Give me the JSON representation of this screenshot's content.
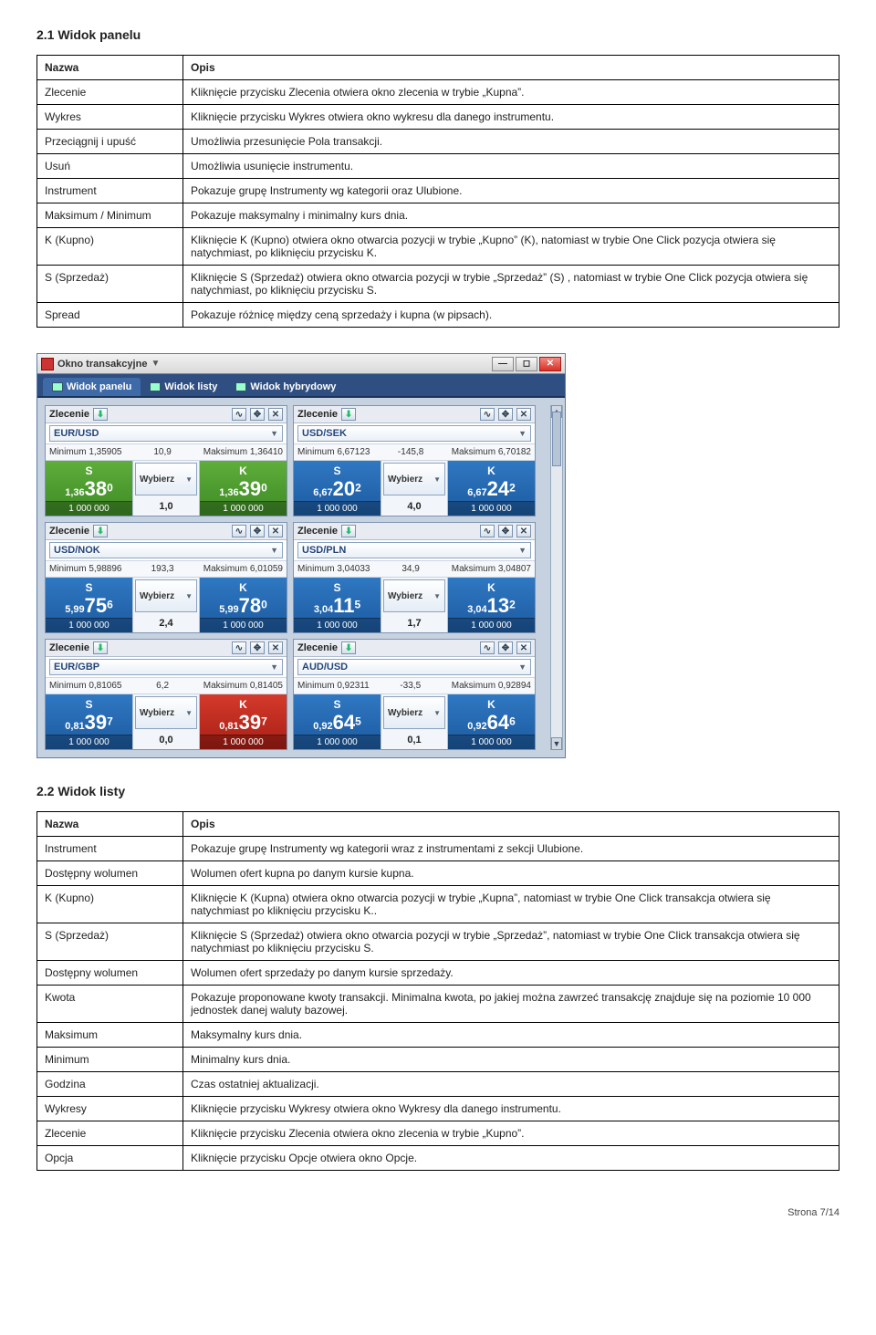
{
  "section1": {
    "title": "2.1 Widok panelu"
  },
  "table1": {
    "header": {
      "c1": "Nazwa",
      "c2": "Opis"
    },
    "rows": [
      {
        "c1": "Zlecenie",
        "c2": "Kliknięcie przycisku Zlecenia otwiera okno zlecenia w trybie „Kupna”."
      },
      {
        "c1": "Wykres",
        "c2": "Kliknięcie przycisku Wykres otwiera okno wykresu dla danego instrumentu."
      },
      {
        "c1": "Przeciągnij i upuść",
        "c2": "Umożliwia przesunięcie Pola transakcji."
      },
      {
        "c1": "Usuń",
        "c2": "Umożliwia usunięcie instrumentu."
      },
      {
        "c1": "Instrument",
        "c2": "Pokazuje grupę Instrumenty wg kategorii oraz Ulubione."
      },
      {
        "c1": "Maksimum / Minimum",
        "c2": "Pokazuje maksymalny i minimalny kurs dnia."
      },
      {
        "c1": "K (Kupno)",
        "c2": "Kliknięcie K (Kupno) otwiera okno otwarcia pozycji w trybie „Kupno” (K), natomiast w trybie One Click pozycja otwiera się natychmiast, po kliknięciu przycisku K."
      },
      {
        "c1": "S (Sprzedaż)",
        "c2": "Kliknięcie S (Sprzedaż) otwiera okno otwarcia pozycji w trybie „Sprzedaż” (S) , natomiast w trybie One Click pozycja otwiera się natychmiast, po kliknięciu przycisku S."
      },
      {
        "c1": "Spread",
        "c2": "Pokazuje różnicę między ceną sprzedaży i kupna (w pipsach)."
      }
    ]
  },
  "window": {
    "title": "Okno transakcyjne",
    "tabs": {
      "t1": "Widok panelu",
      "t2": "Widok listy",
      "t3": "Widok hybrydowy"
    },
    "zlecenie_label": "Zlecenie",
    "wybierz_label": "Wybierz",
    "s_label": "S",
    "k_label": "K",
    "min_label": "Minimum",
    "max_label": "Maksimum",
    "volume": "1 000 000",
    "tiles": [
      {
        "instr": "EUR/USD",
        "min": "1,35905",
        "max": "1,36410",
        "spread_hdr": "10,9",
        "s_color": "c-green",
        "k_color": "c-green",
        "s_pre": "1,36",
        "s_big": "38",
        "s_exp": "0",
        "k_pre": "1,36",
        "k_big": "39",
        "k_exp": "0",
        "mid": "1,0"
      },
      {
        "instr": "USD/SEK",
        "min": "6,67123",
        "max": "6,70182",
        "spread_hdr": "-145,8",
        "s_color": "c-blue",
        "k_color": "c-blue",
        "s_pre": "6,67",
        "s_big": "20",
        "s_exp": "2",
        "k_pre": "6,67",
        "k_big": "24",
        "k_exp": "2",
        "mid": "4,0"
      },
      {
        "instr": "USD/NOK",
        "min": "5,98896",
        "max": "6,01059",
        "spread_hdr": "193,3",
        "s_color": "c-blue",
        "k_color": "c-blue",
        "s_pre": "5,99",
        "s_big": "75",
        "s_exp": "6",
        "k_pre": "5,99",
        "k_big": "78",
        "k_exp": "0",
        "mid": "2,4"
      },
      {
        "instr": "USD/PLN",
        "min": "3,04033",
        "max": "3,04807",
        "spread_hdr": "34,9",
        "s_color": "c-blue",
        "k_color": "c-blue",
        "s_pre": "3,04",
        "s_big": "11",
        "s_exp": "5",
        "k_pre": "3,04",
        "k_big": "13",
        "k_exp": "2",
        "mid": "1,7"
      },
      {
        "instr": "EUR/GBP",
        "min": "0,81065",
        "max": "0,81405",
        "spread_hdr": "6,2",
        "s_color": "c-blue",
        "k_color": "c-red",
        "s_pre": "0,81",
        "s_big": "39",
        "s_exp": "7",
        "k_pre": "0,81",
        "k_big": "39",
        "k_exp": "7",
        "mid": "0,0"
      },
      {
        "instr": "AUD/USD",
        "min": "0,92311",
        "max": "0,92894",
        "spread_hdr": "-33,5",
        "s_color": "c-blue",
        "k_color": "c-blue",
        "s_pre": "0,92",
        "s_big": "64",
        "s_exp": "5",
        "k_pre": "0,92",
        "k_big": "64",
        "k_exp": "6",
        "mid": "0,1"
      }
    ]
  },
  "section2": {
    "title": "2.2 Widok listy"
  },
  "table2": {
    "header": {
      "c1": "Nazwa",
      "c2": "Opis"
    },
    "rows": [
      {
        "c1": "Instrument",
        "c2": "Pokazuje grupę Instrumenty wg kategorii wraz z instrumentami z sekcji Ulubione."
      },
      {
        "c1": "Dostępny wolumen",
        "c2": "Wolumen ofert kupna po danym kursie kupna."
      },
      {
        "c1": "K (Kupno)",
        "c2": "Kliknięcie K (Kupna) otwiera okno otwarcia pozycji w trybie „Kupna”, natomiast w trybie One Click transakcja otwiera się natychmiast po kliknięciu przycisku K.."
      },
      {
        "c1": "S (Sprzedaż)",
        "c2": "Kliknięcie S (Sprzedaż) otwiera okno otwarcia pozycji w trybie „Sprzedaż”, natomiast w trybie One Click transakcja otwiera się natychmiast po kliknięciu przycisku S."
      },
      {
        "c1": "Dostępny wolumen",
        "c2": "Wolumen ofert sprzedaży po danym kursie sprzedaży."
      },
      {
        "c1": "Kwota",
        "c2": "Pokazuje proponowane kwoty transakcji. Minimalna kwota, po jakiej można zawrzeć transakcję znajduje się na poziomie 10 000 jednostek danej waluty bazowej."
      },
      {
        "c1": "Maksimum",
        "c2": "Maksymalny kurs dnia."
      },
      {
        "c1": "Minimum",
        "c2": "Minimalny kurs dnia."
      },
      {
        "c1": "Godzina",
        "c2": "Czas ostatniej aktualizacji."
      },
      {
        "c1": "Wykresy",
        "c2": "Kliknięcie przycisku Wykresy otwiera okno Wykresy dla danego instrumentu."
      },
      {
        "c1": "Zlecenie",
        "c2": "Kliknięcie przycisku Zlecenia otwiera okno zlecenia w trybie „Kupno”."
      },
      {
        "c1": "Opcja",
        "c2": "Kliknięcie przycisku Opcje otwiera okno Opcje."
      }
    ]
  },
  "footer": {
    "text": "Strona  7/14"
  }
}
